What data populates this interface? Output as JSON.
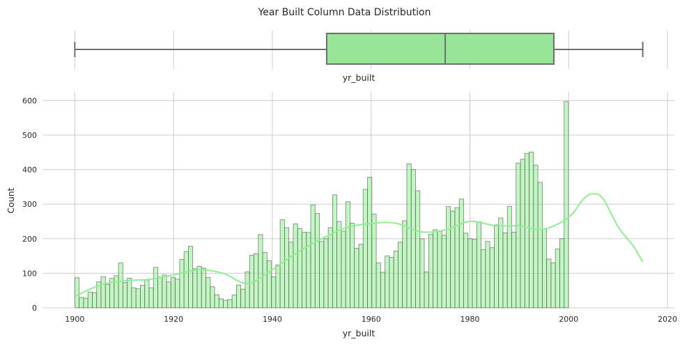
{
  "chart_data": [
    {
      "type": "box",
      "title": "Year Built Column Data Distribution",
      "xlabel": "yr_built",
      "whisker_low": 1900,
      "q1": 1951,
      "median": 1975,
      "q3": 1997,
      "whisker_high": 2015,
      "xlim": [
        1893.6,
        2021.4
      ],
      "grid": true,
      "color": "#98e498"
    },
    {
      "type": "histogram",
      "xlabel": "yr_built",
      "ylabel": "Count",
      "xlim": [
        1893.6,
        2021.4
      ],
      "ylim": [
        0,
        625
      ],
      "x_ticks": [
        "1900",
        "1920",
        "1940",
        "1960",
        "1980",
        "2000",
        "2020"
      ],
      "y_ticks": [
        "0",
        "100",
        "200",
        "300",
        "400",
        "500",
        "600"
      ],
      "bin_start": 1900,
      "bin_width": 0.8846,
      "values": [
        87,
        30,
        28,
        46,
        44,
        75,
        90,
        68,
        85,
        93,
        130,
        73,
        86,
        58,
        55,
        65,
        80,
        58,
        117,
        89,
        95,
        75,
        88,
        83,
        140,
        163,
        178,
        113,
        120,
        115,
        88,
        61,
        38,
        26,
        22,
        24,
        37,
        66,
        54,
        104,
        152,
        157,
        212,
        160,
        136,
        90,
        124,
        255,
        232,
        190,
        243,
        230,
        219,
        218,
        298,
        273,
        192,
        200,
        232,
        327,
        250,
        222,
        307,
        245,
        172,
        184,
        343,
        378,
        271,
        130,
        103,
        150,
        146,
        164,
        190,
        252,
        417,
        400,
        339,
        200,
        104,
        213,
        226,
        221,
        210,
        293,
        280,
        290,
        315,
        216,
        200,
        198,
        249,
        168,
        192,
        174,
        240,
        260,
        217,
        294,
        219,
        419,
        430,
        447,
        451,
        413,
        363,
        228,
        141,
        130,
        170,
        200,
        597
      ],
      "kde_x": [
        1900,
        1905,
        1910,
        1915,
        1920,
        1925,
        1930,
        1935,
        1940,
        1945,
        1950,
        1955,
        1960,
        1965,
        1970,
        1975,
        1980,
        1985,
        1990,
        1995,
        2000,
        2003,
        2005,
        2007,
        2010,
        2013,
        2015
      ],
      "kde_y": [
        33,
        65,
        78,
        82,
        95,
        110,
        100,
        70,
        110,
        160,
        200,
        232,
        244,
        245,
        220,
        225,
        250,
        238,
        237,
        228,
        262,
        315,
        330,
        315,
        235,
        180,
        133
      ],
      "bar_color": "#90ee90",
      "line_color": "#90ee90",
      "grid": true
    }
  ]
}
